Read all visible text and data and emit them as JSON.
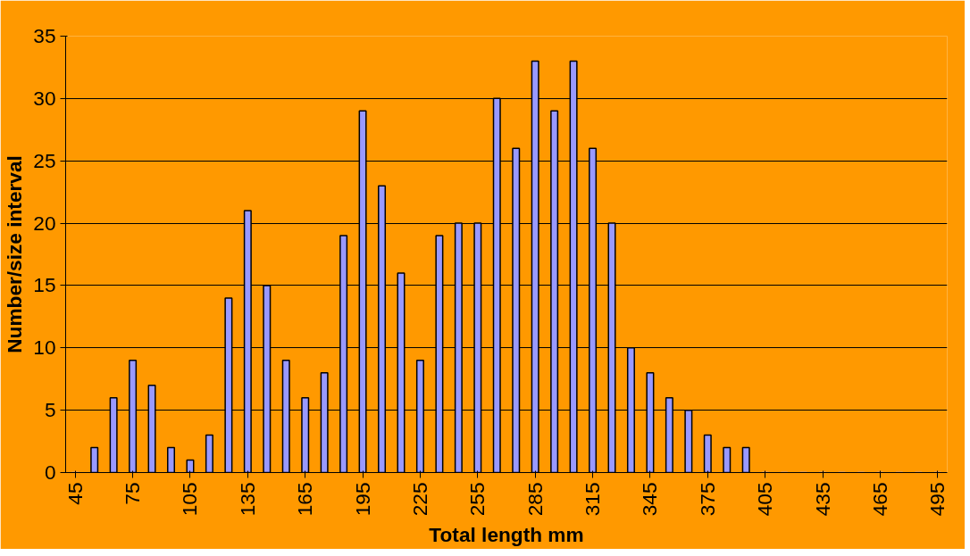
{
  "chart_data": {
    "type": "bar",
    "xlabel": "Total length mm",
    "ylabel": "Number/size interval",
    "categories": [
      "45",
      null,
      null,
      "75",
      null,
      null,
      "105",
      null,
      null,
      "135",
      null,
      null,
      "165",
      null,
      null,
      "195",
      null,
      null,
      "225",
      null,
      null,
      "255",
      null,
      null,
      "285",
      null,
      null,
      "315",
      null,
      null,
      "345",
      null,
      null,
      "375",
      null,
      null,
      "405",
      null,
      null,
      "435",
      null,
      null,
      "465",
      null,
      null,
      "495"
    ],
    "values": [
      0,
      2,
      6,
      9,
      7,
      2,
      1,
      3,
      14,
      21,
      15,
      9,
      6,
      8,
      19,
      29,
      23,
      16,
      9,
      19,
      20,
      20,
      30,
      26,
      33,
      29,
      33,
      26,
      20,
      10,
      8,
      6,
      5,
      3,
      2,
      2,
      0,
      0,
      0,
      0,
      0,
      0,
      0,
      0,
      0,
      0
    ],
    "color": "#9999ff",
    "ylim": [
      0,
      35
    ],
    "yticks": [
      0,
      5,
      10,
      15,
      20,
      25,
      30,
      35
    ],
    "grid": "y"
  }
}
